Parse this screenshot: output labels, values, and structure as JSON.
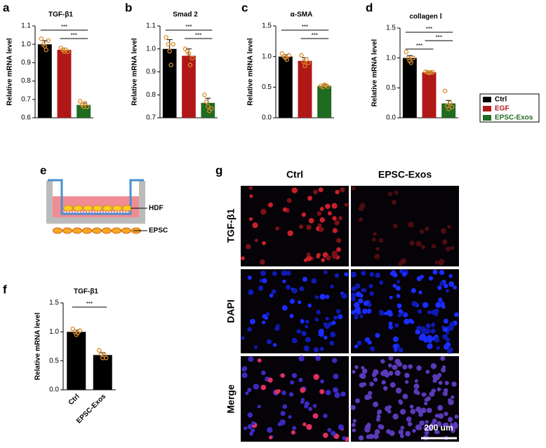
{
  "chart_data": [
    {
      "type": "bar",
      "panel_label": "a",
      "title": "TGF-β1",
      "y_label": "Relative mRNA level",
      "categories": [
        null,
        null,
        null
      ],
      "values": [
        1.0,
        0.97,
        0.67
      ],
      "errors": [
        0.02,
        0.01,
        0.01
      ],
      "points": [
        [
          1.03,
          1.0,
          0.99,
          0.97,
          1.02
        ],
        [
          0.98,
          0.97,
          0.96,
          0.97,
          0.96
        ],
        [
          0.69,
          0.67,
          0.66,
          0.68,
          0.66
        ]
      ],
      "ylim": [
        0.6,
        1.1
      ],
      "yticks": [
        0.6,
        0.7,
        0.8,
        0.9,
        {
          "value": 1,
          "label": "1.0"
        },
        1.1
      ],
      "annotations": [
        "***",
        "***"
      ]
    },
    {
      "type": "bar",
      "panel_label": "b",
      "title": "Smad 2",
      "y_label": "Relative mRNA level",
      "categories": [
        null,
        null,
        null
      ],
      "values": [
        1.0,
        0.97,
        0.765
      ],
      "errors": [
        0.04,
        0.03,
        0.02
      ],
      "points": [
        [
          1.05,
          1.02,
          0.99,
          0.93,
          1.02
        ],
        [
          1.0,
          0.99,
          0.98,
          0.93,
          0.96
        ],
        [
          0.8,
          0.77,
          0.75,
          0.73,
          0.74
        ]
      ],
      "ylim": [
        0.7,
        1.1
      ],
      "yticks": [
        0.7,
        0.8,
        0.9,
        {
          "value": 1,
          "label": "1.0"
        },
        1.1
      ],
      "annotations": [
        "***",
        "***"
      ]
    },
    {
      "type": "bar",
      "panel_label": "c",
      "title": "α-SMA",
      "y_label": "Relative mRNA level",
      "categories": [
        null,
        null,
        null
      ],
      "values": [
        1.0,
        0.93,
        0.52
      ],
      "errors": [
        0.03,
        0.05,
        0.02
      ],
      "points": [
        [
          1.05,
          1.0,
          0.98,
          0.95,
          1.02
        ],
        [
          1.02,
          0.92,
          0.85,
          0.95,
          0.9
        ],
        [
          0.52,
          0.5,
          0.54,
          0.53,
          0.51
        ]
      ],
      "ylim": [
        0,
        1.5
      ],
      "yticks": [
        {
          "value": 0,
          "label": "0.0"
        },
        0.5,
        {
          "value": 1,
          "label": "1.0"
        },
        1.5
      ],
      "annotations": [
        "***",
        "***"
      ]
    },
    {
      "type": "bar",
      "panel_label": "d",
      "title": "collagen Ⅰ",
      "y_label": "Relative mRNA level",
      "categories": [
        null,
        null,
        null
      ],
      "values": [
        1.0,
        0.76,
        0.24
      ],
      "errors": [
        0.04,
        0.01,
        0.05
      ],
      "points": [
        [
          1.1,
          1.0,
          0.95,
          0.92,
          1.0
        ],
        [
          0.77,
          0.76,
          0.75,
          0.76,
          0.76
        ],
        [
          0.45,
          0.2,
          0.15,
          0.25,
          0.18
        ]
      ],
      "ylim": [
        0,
        1.5
      ],
      "yticks": [
        {
          "value": 0,
          "label": "0.0"
        },
        0.5,
        {
          "value": 1,
          "label": "1.0"
        },
        1.5
      ],
      "annotations": [
        "***",
        "***",
        "***"
      ]
    },
    {
      "type": "bar",
      "panel_label": "f",
      "title": "TGF-β1",
      "y_label": "Relative mRNA level",
      "categories": [
        "Ctrl",
        "EPSC-Exos"
      ],
      "values": [
        1.0,
        0.6
      ],
      "errors": [
        0.03,
        0.04
      ],
      "color": "#000000",
      "points": [
        [
          1.05,
          1.0,
          0.95,
          0.98,
          1.02
        ],
        [
          0.68,
          0.62,
          0.55,
          0.6,
          0.55
        ]
      ],
      "ylim": [
        0,
        1.5
      ],
      "yticks": [
        {
          "value": 0,
          "label": "0.0"
        },
        0.5,
        {
          "value": 1,
          "label": "1.0"
        },
        1.5
      ],
      "annotations": [
        "***"
      ]
    }
  ],
  "legend": [
    {
      "name": "Ctrl",
      "color": "#000000"
    },
    {
      "name": "EGF",
      "color": "#b01818"
    },
    {
      "name": "EPSC-Exos",
      "color": "#1f6b1f"
    }
  ],
  "diagram": {
    "panel_label": "e",
    "labels": [
      "HDF",
      "EPSC"
    ]
  },
  "micrographs": {
    "panel_label": "g",
    "columns": [
      "Ctrl",
      "EPSC-Exos"
    ],
    "rows": [
      "TGF-β1",
      "DAPI",
      "Merge"
    ],
    "scale_bar": "200 um"
  }
}
